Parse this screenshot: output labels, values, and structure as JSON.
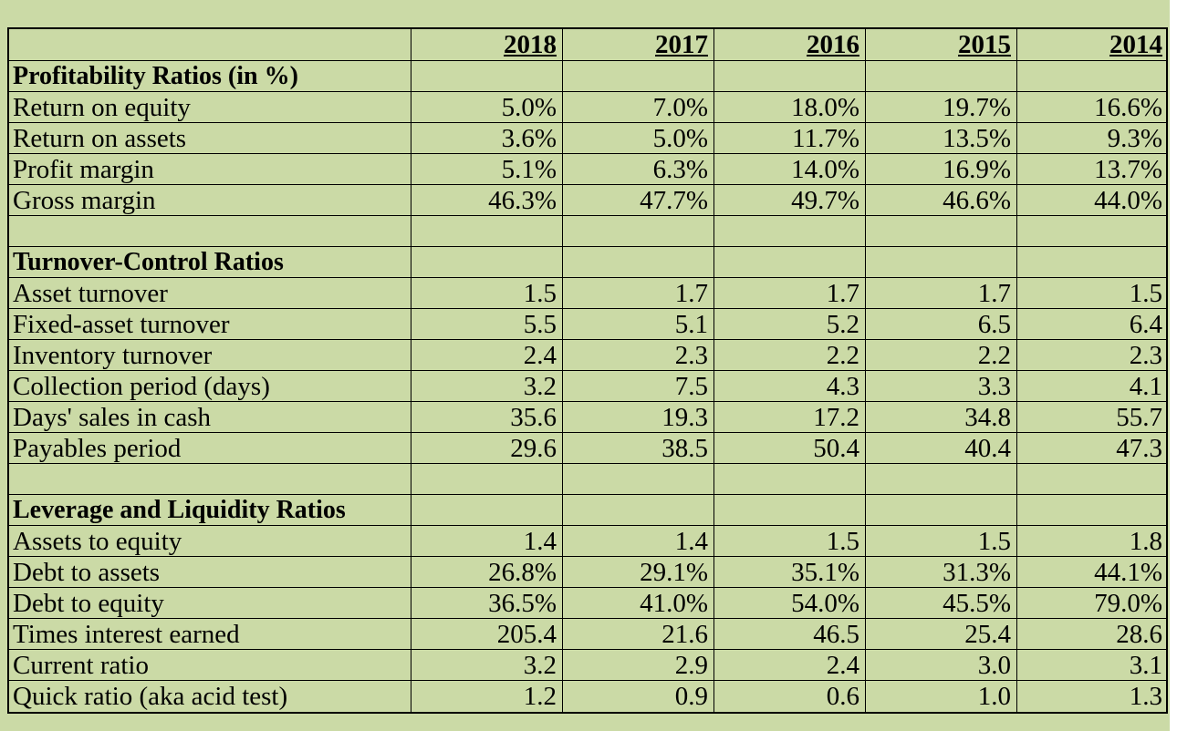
{
  "years": [
    "2018",
    "2017",
    "2016",
    "2015",
    "2014"
  ],
  "sections": [
    {
      "title": "Profitability Ratios (in %)",
      "rows": [
        {
          "label": "Return on equity",
          "values": [
            "5.0%",
            "7.0%",
            "18.0%",
            "19.7%",
            "16.6%"
          ]
        },
        {
          "label": "Return on assets",
          "values": [
            "3.6%",
            "5.0%",
            "11.7%",
            "13.5%",
            "9.3%"
          ]
        },
        {
          "label": "Profit margin",
          "values": [
            "5.1%",
            "6.3%",
            "14.0%",
            "16.9%",
            "13.7%"
          ]
        },
        {
          "label": "Gross margin",
          "values": [
            "46.3%",
            "47.7%",
            "49.7%",
            "46.6%",
            "44.0%"
          ]
        }
      ]
    },
    {
      "title": "Turnover-Control Ratios",
      "rows": [
        {
          "label": "Asset turnover",
          "values": [
            "1.5",
            "1.7",
            "1.7",
            "1.7",
            "1.5"
          ]
        },
        {
          "label": "Fixed-asset turnover",
          "values": [
            "5.5",
            "5.1",
            "5.2",
            "6.5",
            "6.4"
          ]
        },
        {
          "label": "Inventory turnover",
          "values": [
            "2.4",
            "2.3",
            "2.2",
            "2.2",
            "2.3"
          ]
        },
        {
          "label": "Collection period (days)",
          "values": [
            "3.2",
            "7.5",
            "4.3",
            "3.3",
            "4.1"
          ]
        },
        {
          "label": "Days' sales in cash",
          "values": [
            "35.6",
            "19.3",
            "17.2",
            "34.8",
            "55.7"
          ]
        },
        {
          "label": "Payables period",
          "values": [
            "29.6",
            "38.5",
            "50.4",
            "40.4",
            "47.3"
          ]
        }
      ]
    },
    {
      "title": "Leverage and Liquidity Ratios",
      "rows": [
        {
          "label": "Assets to equity",
          "values": [
            "1.4",
            "1.4",
            "1.5",
            "1.5",
            "1.8"
          ]
        },
        {
          "label": "Debt to assets",
          "values": [
            "26.8%",
            "29.1%",
            "35.1%",
            "31.3%",
            "44.1%"
          ]
        },
        {
          "label": "Debt to equity",
          "values": [
            "36.5%",
            "41.0%",
            "54.0%",
            "45.5%",
            "79.0%"
          ]
        },
        {
          "label": "Times interest earned",
          "values": [
            "205.4",
            "21.6",
            "46.5",
            "25.4",
            "28.6"
          ]
        },
        {
          "label": "Current ratio",
          "values": [
            "3.2",
            "2.9",
            "2.4",
            "3.0",
            "3.1"
          ]
        },
        {
          "label": "Quick ratio (aka acid test)",
          "values": [
            "1.2",
            "0.9",
            "0.6",
            "1.0",
            "1.3"
          ]
        }
      ]
    }
  ]
}
